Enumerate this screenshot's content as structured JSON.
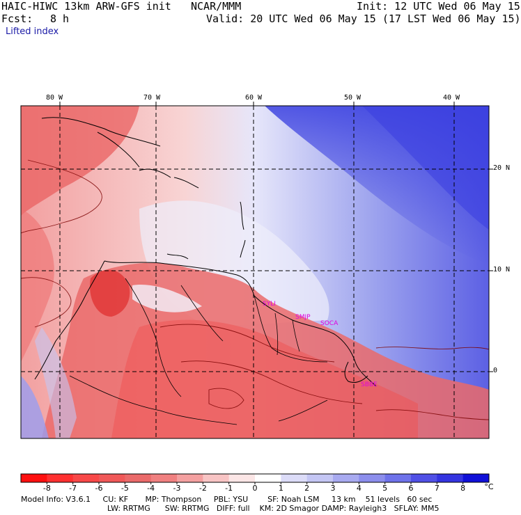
{
  "header": {
    "model": "HAIC-HIWC 13km ARW-GFS init",
    "org": "NCAR/MMM",
    "init": "Init: 12 UTC Wed 06 May 15",
    "fcst_label": "Fcst:",
    "fcst_value": "8 h",
    "valid": "Valid: 20 UTC Wed 06 May 15 (17 LST Wed 06 May 15)",
    "field": "Lifted index"
  },
  "axes": {
    "lon_ticks": [
      "80 W",
      "70 W",
      "60 W",
      "50 W",
      "40 W"
    ],
    "lat_ticks": [
      "20 N",
      "10 N",
      "0"
    ]
  },
  "stations": [
    "SYLI",
    "SMJP",
    "SOCA",
    "SBBE"
  ],
  "colorbar": {
    "labels": [
      "-8",
      "-7",
      "-6",
      "-5",
      "-4",
      "-3",
      "-2",
      "-1",
      "0",
      "1",
      "2",
      "3",
      "4",
      "5",
      "6",
      "7",
      "8"
    ],
    "unit": "°C",
    "colors": [
      "#ff1010",
      "#ff3030",
      "#f84848",
      "#f05858",
      "#ea6a6a",
      "#f08080",
      "#f4a0a0",
      "#f8c4c4",
      "#fce6e6",
      "#ffffff",
      "#dcdcf8",
      "#c4c6f4",
      "#a8aaf0",
      "#8c8eec",
      "#6e72ea",
      "#5050e6",
      "#3434e0",
      "#1010d8"
    ]
  },
  "footer": {
    "line1": "Model Info: V3.6.1     CU: KF       MP: Thompson     PBL: YSU        SF: Noah LSM     13 km    51 levels   60 sec",
    "line2": "LW: RRTMG      SW: RRTMG   DIFF: full    KM: 2D Smagor DAMP: Rayleigh3   SFLAY: MM5"
  }
}
